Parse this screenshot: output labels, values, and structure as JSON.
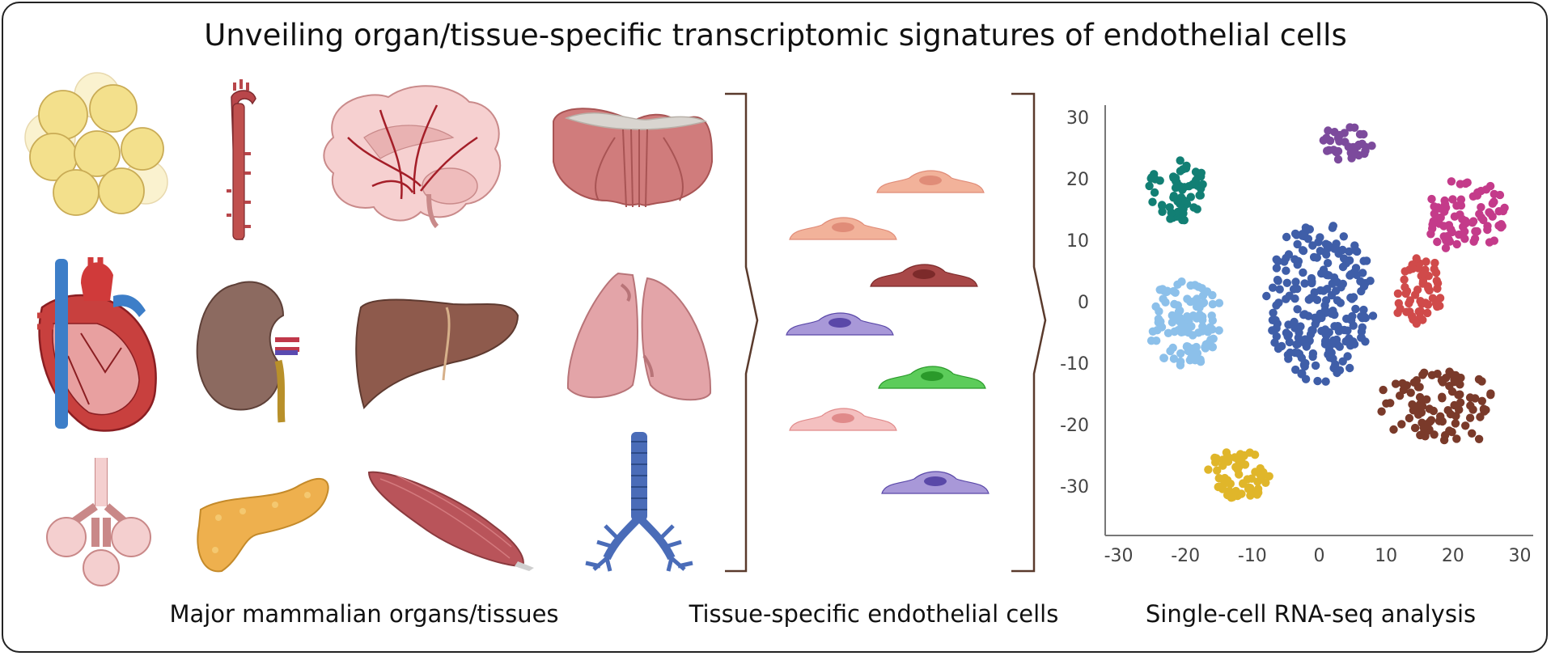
{
  "title": "Unveiling organ/tissue-specific transcriptomic signatures of endothelial cells",
  "captions": {
    "organs": "Major mammalian organs/tissues",
    "cells": "Tissue-specific endothelial cells",
    "analysis": "Single-cell RNA-seq analysis"
  },
  "organs": [
    {
      "name": "adipose-tissue",
      "color": "#f3e08c"
    },
    {
      "name": "aorta",
      "color": "#b8464a"
    },
    {
      "name": "brain",
      "color": "#f3c8c8"
    },
    {
      "name": "diaphragm",
      "color": "#c96a6a"
    },
    {
      "name": "heart",
      "color": "#c8403e"
    },
    {
      "name": "kidney",
      "color": "#8c6a60"
    },
    {
      "name": "liver",
      "color": "#8e5a4c"
    },
    {
      "name": "lung",
      "color": "#e3a4a8"
    },
    {
      "name": "mammary-gland",
      "color": "#f4cfcf"
    },
    {
      "name": "pancreas",
      "color": "#eeb04e"
    },
    {
      "name": "skeletal-muscle",
      "color": "#b9545a"
    },
    {
      "name": "trachea",
      "color": "#4a6cb8"
    }
  ],
  "endothelial_cells": [
    {
      "color": "#f2b29a",
      "nucleus": "#e08c78"
    },
    {
      "color": "#f2b29a",
      "nucleus": "#e08c78"
    },
    {
      "color": "#a84848",
      "nucleus": "#7c2a2a"
    },
    {
      "color": "#a898d8",
      "nucleus": "#5a48a8"
    },
    {
      "color": "#5ccc5a",
      "nucleus": "#2a9a2a"
    },
    {
      "color": "#f4c0c0",
      "nucleus": "#e08a8a"
    },
    {
      "color": "#a898d8",
      "nucleus": "#5a48a8"
    }
  ],
  "chart_data": {
    "type": "scatter",
    "xlim": [
      -32,
      32
    ],
    "ylim": [
      -38,
      32
    ],
    "xticks": [
      "-30",
      "-20",
      "-10",
      "0",
      "10",
      "20",
      "30"
    ],
    "yticks": [
      "30",
      "20",
      "10",
      "0",
      "-10",
      "-20",
      "-30"
    ],
    "xtick_values": [
      -30,
      -20,
      -10,
      0,
      10,
      20,
      30
    ],
    "ytick_values": [
      30,
      20,
      10,
      0,
      -10,
      -20,
      -30
    ],
    "grid": false,
    "clusters": [
      {
        "color": "#3f5ea8",
        "center": [
          0,
          0
        ],
        "spread": [
          8,
          13
        ],
        "count": 230
      },
      {
        "color": "#8cc0ea",
        "center": [
          -20,
          -3
        ],
        "spread": [
          5,
          7.5
        ],
        "count": 110
      },
      {
        "color": "#127f74",
        "center": [
          -21,
          18
        ],
        "spread": [
          4,
          4.5
        ],
        "count": 60
      },
      {
        "color": "#7c4a9c",
        "center": [
          4,
          26
        ],
        "spread": [
          3.5,
          3
        ],
        "count": 35
      },
      {
        "color": "#c43b8a",
        "center": [
          22,
          14
        ],
        "spread": [
          6,
          5.5
        ],
        "count": 80
      },
      {
        "color": "#d04a4a",
        "center": [
          15,
          1
        ],
        "spread": [
          3.5,
          6
        ],
        "count": 55
      },
      {
        "color": "#7a3a2a",
        "center": [
          18,
          -17
        ],
        "spread": [
          9,
          6
        ],
        "count": 95
      },
      {
        "color": "#e0b62a",
        "center": [
          -12,
          -28
        ],
        "spread": [
          4.5,
          4.5
        ],
        "count": 65
      }
    ]
  }
}
